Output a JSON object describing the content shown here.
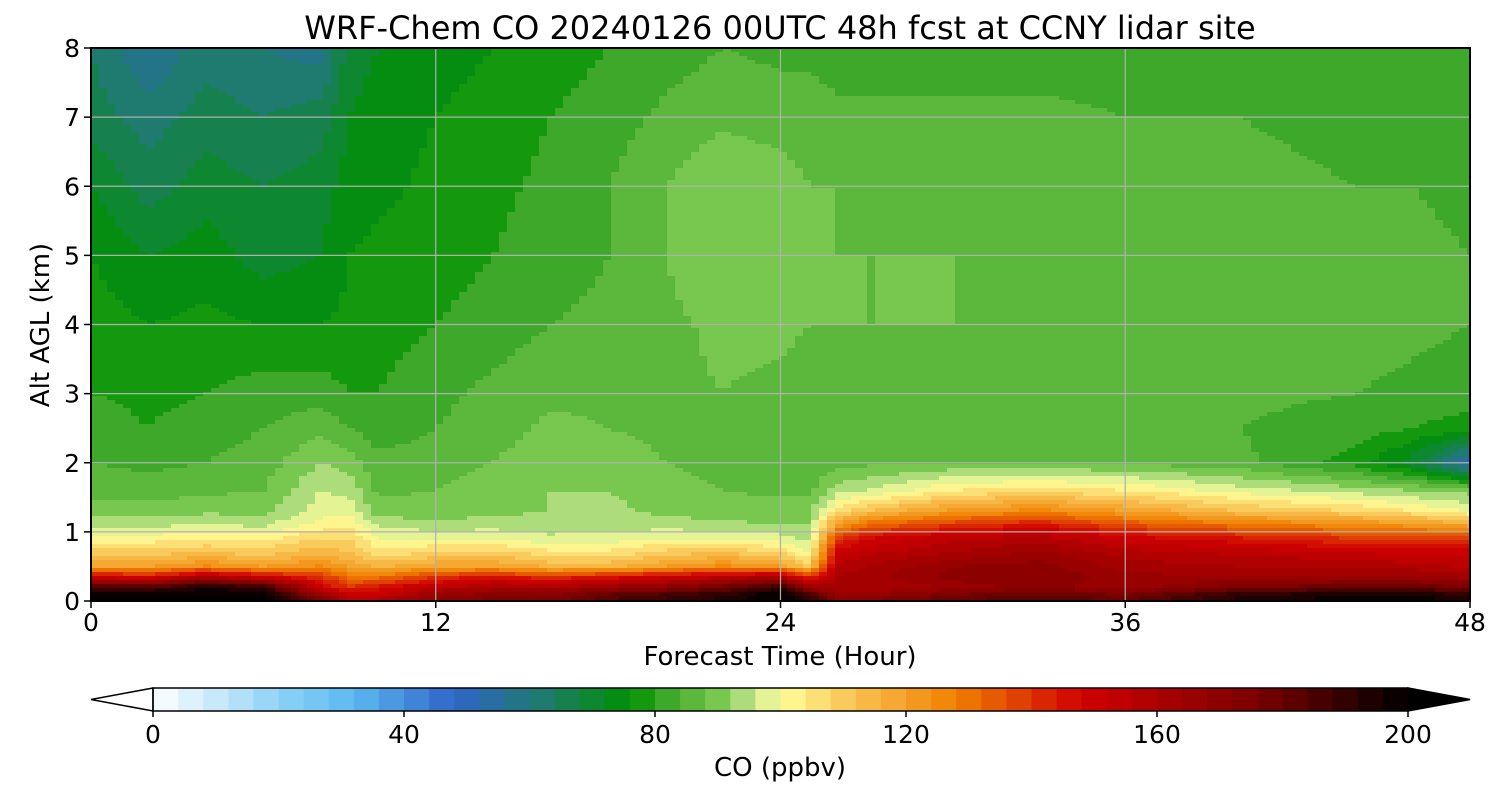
{
  "chart_data": {
    "type": "heatmap",
    "title": "WRF-Chem CO  20240126 00UTC 48h fcst at CCNY lidar site",
    "xlabel": "Forecast Time (Hour)",
    "ylabel": "Alt AGL (km)",
    "xlim": [
      0,
      48
    ],
    "ylim": [
      0,
      8
    ],
    "xticks": [
      0,
      12,
      24,
      36,
      48
    ],
    "yticks": [
      0,
      1,
      2,
      3,
      4,
      5,
      6,
      7,
      8
    ],
    "grid": true,
    "colorbar": {
      "label": "CO  (ppbv)",
      "range": [
        0,
        200
      ],
      "ticks": [
        0,
        40,
        80,
        120,
        160,
        200
      ],
      "extend": "both",
      "colors": [
        {
          "v": 0,
          "c": "#ffffff"
        },
        {
          "v": 20,
          "c": "#8fd3f5"
        },
        {
          "v": 32,
          "c": "#5bb8f0"
        },
        {
          "v": 48,
          "c": "#2f65c8"
        },
        {
          "v": 62,
          "c": "#1f7a6f"
        },
        {
          "v": 76,
          "c": "#009000"
        },
        {
          "v": 82,
          "c": "#3da82a"
        },
        {
          "v": 90,
          "c": "#78c850"
        },
        {
          "v": 96,
          "c": "#c8e890"
        },
        {
          "v": 100,
          "c": "#ffff9a"
        },
        {
          "v": 112,
          "c": "#f8c050"
        },
        {
          "v": 128,
          "c": "#f08000"
        },
        {
          "v": 148,
          "c": "#d00000"
        },
        {
          "v": 176,
          "c": "#7a0000"
        },
        {
          "v": 200,
          "c": "#000000"
        }
      ]
    },
    "times": [
      0,
      2,
      4,
      6,
      8,
      9,
      10,
      12,
      14,
      16,
      18,
      20,
      22,
      24,
      25,
      26,
      27,
      30,
      33,
      36,
      40,
      44,
      46,
      48
    ],
    "altitudes": [
      0,
      0.1,
      0.2,
      0.35,
      0.5,
      0.7,
      0.9,
      1.1,
      1.3,
      1.6,
      2.0,
      2.5,
      3,
      4,
      5,
      6,
      7,
      8
    ],
    "values": [
      [
        200,
        200,
        200,
        200,
        180,
        160,
        160,
        170,
        175,
        175,
        185,
        190,
        195,
        200,
        195,
        175,
        175,
        180,
        185,
        180,
        195,
        200,
        200,
        195
      ],
      [
        200,
        200,
        200,
        200,
        165,
        150,
        150,
        165,
        170,
        170,
        180,
        185,
        190,
        200,
        185,
        165,
        165,
        175,
        180,
        175,
        190,
        195,
        195,
        190
      ],
      [
        185,
        185,
        195,
        190,
        150,
        140,
        145,
        155,
        160,
        160,
        165,
        170,
        178,
        190,
        165,
        160,
        160,
        165,
        170,
        165,
        175,
        180,
        180,
        175
      ],
      [
        150,
        145,
        160,
        150,
        140,
        130,
        130,
        140,
        145,
        140,
        145,
        150,
        155,
        160,
        140,
        160,
        162,
        170,
        172,
        165,
        165,
        165,
        165,
        162
      ],
      [
        120,
        120,
        125,
        120,
        125,
        120,
        115,
        120,
        120,
        115,
        115,
        120,
        125,
        120,
        110,
        158,
        160,
        168,
        170,
        162,
        160,
        160,
        158,
        155
      ],
      [
        110,
        110,
        112,
        110,
        115,
        112,
        105,
        108,
        110,
        105,
        105,
        110,
        112,
        108,
        100,
        150,
        155,
        160,
        165,
        158,
        155,
        152,
        150,
        150
      ],
      [
        102,
        102,
        104,
        103,
        108,
        108,
        100,
        100,
        100,
        97,
        98,
        100,
        100,
        98,
        95,
        140,
        148,
        155,
        158,
        150,
        145,
        140,
        140,
        140
      ],
      [
        95,
        95,
        96,
        95,
        102,
        104,
        95,
        93,
        94,
        94,
        94,
        94,
        93,
        92,
        92,
        122,
        132,
        140,
        145,
        136,
        130,
        125,
        122,
        118
      ],
      [
        90,
        90,
        91,
        91,
        98,
        98,
        90,
        90,
        91,
        92,
        93,
        91,
        90,
        90,
        90,
        106,
        112,
        122,
        126,
        120,
        112,
        108,
        104,
        100
      ],
      [
        86,
        86,
        87,
        88,
        96,
        95,
        87,
        88,
        90,
        92,
        92,
        90,
        88,
        87,
        87,
        94,
        96,
        104,
        106,
        104,
        98,
        94,
        92,
        90
      ],
      [
        84,
        83,
        84,
        86,
        92,
        90,
        85,
        86,
        88,
        91,
        90,
        88,
        86,
        85,
        85,
        86,
        87,
        88,
        88,
        87,
        85,
        78,
        70,
        52
      ],
      [
        82,
        80,
        82,
        84,
        87,
        84,
        82,
        84,
        86,
        89,
        88,
        87,
        86,
        85,
        84,
        84,
        85,
        85,
        85,
        85,
        84,
        82,
        80,
        78
      ],
      [
        80,
        79,
        80,
        82,
        82,
        80,
        80,
        83,
        85,
        87,
        87,
        87,
        88,
        87,
        86,
        86,
        86,
        86,
        86,
        86,
        85,
        84,
        83,
        82
      ],
      [
        78,
        76,
        77,
        76,
        76,
        77,
        78,
        80,
        82,
        84,
        85,
        87,
        89,
        89,
        88,
        88,
        88,
        88,
        88,
        88,
        87,
        86,
        85,
        84
      ],
      [
        76,
        72,
        74,
        70,
        72,
        76,
        77,
        78,
        80,
        82,
        84,
        88,
        92,
        90,
        88,
        88,
        88,
        88,
        87,
        87,
        86,
        85,
        85,
        84
      ],
      [
        72,
        66,
        70,
        68,
        70,
        74,
        75,
        77,
        79,
        81,
        84,
        88,
        92,
        90,
        88,
        88,
        87,
        86,
        86,
        86,
        85,
        84,
        84,
        83
      ],
      [
        66,
        62,
        66,
        64,
        66,
        72,
        74,
        76,
        78,
        80,
        82,
        85,
        87,
        86,
        86,
        85,
        85,
        85,
        85,
        84,
        84,
        83,
        82,
        82
      ],
      [
        64,
        56,
        62,
        60,
        58,
        70,
        72,
        74,
        76,
        78,
        80,
        82,
        84,
        83,
        83,
        82,
        82,
        82,
        82,
        82,
        81,
        80,
        80,
        80
      ]
    ]
  }
}
